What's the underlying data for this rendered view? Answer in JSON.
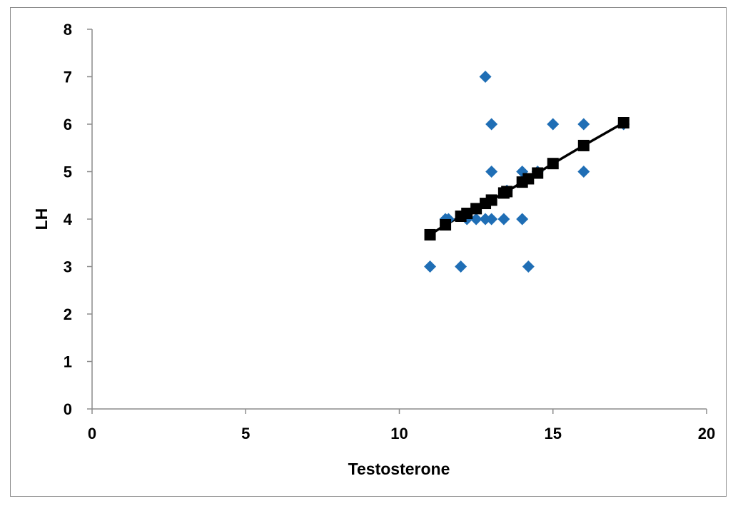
{
  "chart_data": {
    "type": "scatter",
    "title": "",
    "xlabel": "Testosterone",
    "ylabel": "LH",
    "xlim": [
      0,
      20
    ],
    "ylim": [
      0,
      8
    ],
    "xticks": [
      0,
      5,
      10,
      15,
      20
    ],
    "yticks": [
      0,
      1,
      2,
      3,
      4,
      5,
      6,
      7,
      8
    ],
    "grid": false,
    "legend": "none",
    "series": [
      {
        "kind": "observed",
        "marker": "diamond",
        "color": "#1f6eb5",
        "points": [
          [
            11.0,
            3
          ],
          [
            11.5,
            4
          ],
          [
            11.6,
            4
          ],
          [
            12.0,
            3
          ],
          [
            12.2,
            4
          ],
          [
            12.5,
            4
          ],
          [
            12.8,
            4
          ],
          [
            12.8,
            7
          ],
          [
            13.0,
            4
          ],
          [
            13.0,
            5
          ],
          [
            13.0,
            6
          ],
          [
            13.4,
            4
          ],
          [
            13.5,
            4.6
          ],
          [
            14.0,
            4
          ],
          [
            14.0,
            5
          ],
          [
            14.2,
            3
          ],
          [
            14.5,
            5
          ],
          [
            15.0,
            6
          ],
          [
            16.0,
            5
          ],
          [
            16.0,
            6
          ],
          [
            17.3,
            6
          ]
        ]
      },
      {
        "kind": "fitted",
        "marker": "square",
        "color": "#000000",
        "line": true,
        "points": [
          [
            11.0,
            3.67
          ],
          [
            11.5,
            3.88
          ],
          [
            12.0,
            4.06
          ],
          [
            12.2,
            4.12
          ],
          [
            12.5,
            4.22
          ],
          [
            12.8,
            4.33
          ],
          [
            13.0,
            4.4
          ],
          [
            13.4,
            4.55
          ],
          [
            13.5,
            4.58
          ],
          [
            14.0,
            4.78
          ],
          [
            14.2,
            4.85
          ],
          [
            14.5,
            4.97
          ],
          [
            15.0,
            5.17
          ],
          [
            16.0,
            5.55
          ],
          [
            17.3,
            6.03
          ]
        ]
      }
    ]
  }
}
